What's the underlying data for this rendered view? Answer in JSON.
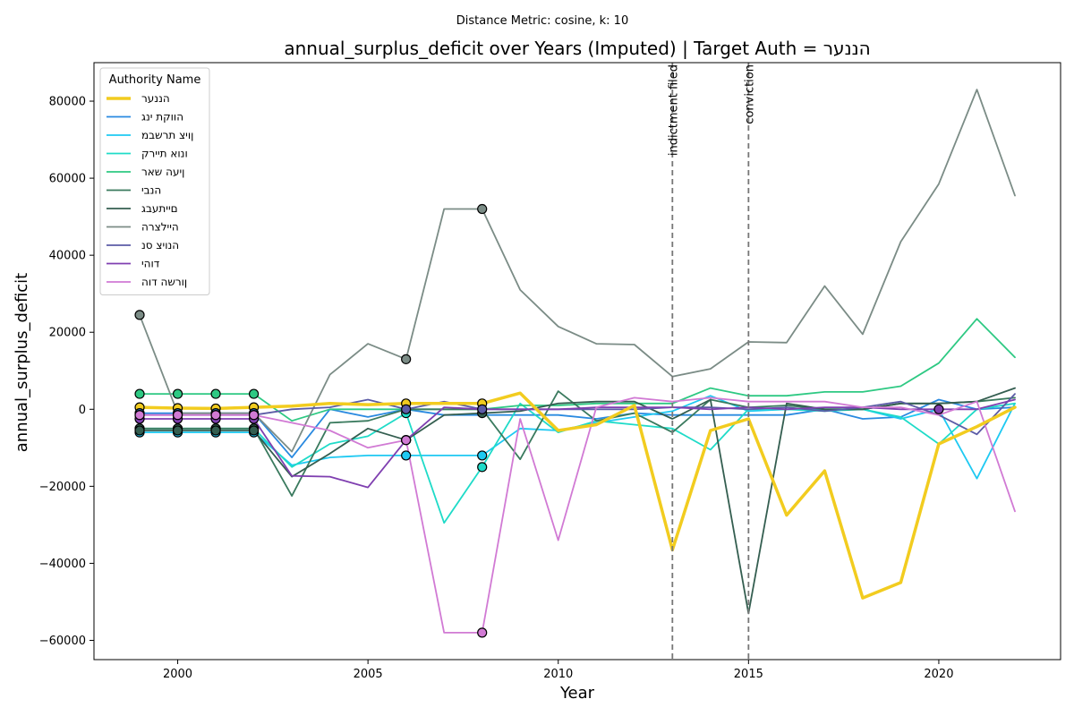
{
  "chart_data": {
    "type": "line",
    "suptitle": "Distance Metric: cosine, k: 10",
    "title": "annual_surplus_deficit over Years (Imputed) | Target Auth = הננער",
    "xlabel": "Year",
    "ylabel": "annual_surplus_deficit",
    "xlim": [
      1997.8,
      2023.2
    ],
    "ylim": [
      -65000,
      90000
    ],
    "x_ticks": [
      2000,
      2005,
      2010,
      2015,
      2020
    ],
    "y_ticks": [
      -60000,
      -40000,
      -20000,
      0,
      20000,
      40000,
      60000,
      80000
    ],
    "grid": false,
    "legend": {
      "title": "Authority Name",
      "position": "top-left"
    },
    "x": [
      1999,
      2000,
      2001,
      2002,
      2003,
      2004,
      2005,
      2006,
      2007,
      2008,
      2009,
      2010,
      2011,
      2012,
      2013,
      2014,
      2015,
      2016,
      2017,
      2018,
      2019,
      2020,
      2021,
      2022
    ],
    "vlines": [
      {
        "x": 2013,
        "label": "indictment filed"
      },
      {
        "x": 2015,
        "label": "conviction"
      }
    ],
    "series": [
      {
        "name": "הננער",
        "color": "#f2cc1f",
        "width": 3.5,
        "target": true,
        "values": [
          500,
          300,
          200,
          500,
          800,
          1500,
          1200,
          1500,
          1500,
          1500,
          4200,
          -5500,
          -4000,
          1000,
          -36500,
          -5500,
          -2500,
          -27500,
          -16000,
          -49000,
          -45000,
          -9000,
          -4500,
          500
        ],
        "imputed_x": [
          1999,
          2000,
          2001,
          2002,
          2006,
          2008
        ]
      },
      {
        "name": "הווקת ינג",
        "color": "#2a8ae0",
        "width": 1.8,
        "values": [
          -1000,
          -1000,
          -1000,
          -1000,
          -12500,
          0,
          -2000,
          0,
          -1500,
          -1500,
          -1500,
          -1500,
          -2500,
          -1000,
          -1500,
          -1500,
          -1500,
          -1500,
          0,
          -2500,
          -2000,
          2500,
          0,
          500
        ],
        "imputed_x": [
          1999,
          2000,
          2001,
          2002
        ]
      },
      {
        "name": "ןויצ תרשבמ",
        "color": "#1ec9f2",
        "width": 1.8,
        "values": [
          -6000,
          -6000,
          -6000,
          -6000,
          -14500,
          -12500,
          -12000,
          -12000,
          -12000,
          -12000,
          -5000,
          -5500,
          -3500,
          -2000,
          -500,
          3500,
          -500,
          0,
          0,
          0,
          -2500,
          0,
          -18000,
          1500
        ],
        "imputed_x": [
          1999,
          2000,
          2001,
          2002,
          2006,
          2008
        ]
      },
      {
        "name": "ונוא תיירק",
        "color": "#1fdbc8",
        "width": 1.8,
        "values": [
          -5000,
          -5000,
          -5000,
          -5000,
          -15000,
          -9000,
          -7000,
          -1000,
          -29500,
          -15000,
          1500,
          -6000,
          -3000,
          -4000,
          -5000,
          -10500,
          0,
          0,
          -500,
          0,
          -2000,
          -9000,
          0,
          1500
        ],
        "imputed_x": [
          1999,
          2000,
          2001,
          2002,
          2006,
          2008
        ]
      },
      {
        "name": "ןיעה שאר",
        "color": "#2ec983",
        "width": 1.8,
        "values": [
          4000,
          4000,
          4000,
          4000,
          -3000,
          0,
          0,
          0,
          0,
          0,
          1000,
          1000,
          1500,
          1500,
          1500,
          5500,
          3500,
          3500,
          4500,
          4500,
          6000,
          12000,
          23500,
          13500
        ],
        "imputed_x": [
          1999,
          2000,
          2001,
          2002
        ]
      },
      {
        "name": "הנבי",
        "color": "#3a7a5e",
        "width": 1.8,
        "values": [
          -5000,
          -5000,
          -5000,
          -5000,
          -22500,
          -3500,
          -3000,
          0,
          0,
          0,
          -13000,
          4700,
          -3000,
          -1000,
          -6000,
          2500,
          500,
          1000,
          0,
          0,
          1500,
          1500,
          2000,
          3000
        ],
        "imputed_x": [
          1999,
          2000,
          2001,
          2002
        ]
      },
      {
        "name": "םייתעבג",
        "color": "#345e50",
        "width": 1.8,
        "values": [
          -5500,
          -5500,
          -5500,
          -5500,
          -17500,
          -11500,
          -5000,
          -8000,
          -1500,
          -1000,
          -500,
          1500,
          2000,
          2000,
          -2500,
          2500,
          -53000,
          1500,
          0,
          0,
          1500,
          1500,
          2000,
          5500
        ],
        "imputed_x": [
          1999,
          2000,
          2001,
          2002,
          2006,
          2008
        ]
      },
      {
        "name": "היילצרה",
        "color": "#7b8c86",
        "width": 1.8,
        "values": [
          24500,
          -1000,
          -1000,
          -1000,
          -11000,
          9000,
          17000,
          13000,
          52000,
          52000,
          31000,
          21500,
          17000,
          16800,
          8500,
          10500,
          17500,
          17300,
          32000,
          19500,
          43500,
          58500,
          83000,
          55500
        ],
        "imputed_x": [
          1999,
          2006,
          2008
        ]
      },
      {
        "name": "הנויצ סנ",
        "color": "#5c5ca6",
        "width": 1.8,
        "values": [
          -1500,
          -1500,
          -1500,
          -1500,
          0,
          500,
          2500,
          0,
          2000,
          0,
          0,
          0,
          0,
          0,
          500,
          500,
          0,
          500,
          -500,
          500,
          2000,
          -1500,
          -6500,
          4000
        ],
        "imputed_x": [
          1999,
          2000,
          2001,
          2002,
          2006,
          2008
        ]
      },
      {
        "name": "דוהי",
        "color": "#7f3fb0",
        "width": 1.8,
        "values": [
          -2500,
          -2500,
          -2500,
          -2500,
          -17300,
          -17500,
          -20300,
          -8000,
          500,
          0,
          0,
          0,
          500,
          500,
          500,
          0,
          500,
          0,
          500,
          500,
          0,
          0,
          0,
          2500
        ],
        "imputed_x": [
          1999,
          2000,
          2001,
          2002,
          2006,
          2020
        ]
      },
      {
        "name": "ןורשה דוה",
        "color": "#d17ad4",
        "width": 1.8,
        "values": [
          -1500,
          -1500,
          -1500,
          -1500,
          -3500,
          -5500,
          -10000,
          -8000,
          -58000,
          -58000,
          -2500,
          -34000,
          500,
          3000,
          2000,
          3000,
          2000,
          2000,
          2000,
          500,
          500,
          -1500,
          2000,
          -26500
        ],
        "imputed_x": [
          1999,
          2000,
          2001,
          2002,
          2006,
          2008
        ]
      }
    ]
  }
}
